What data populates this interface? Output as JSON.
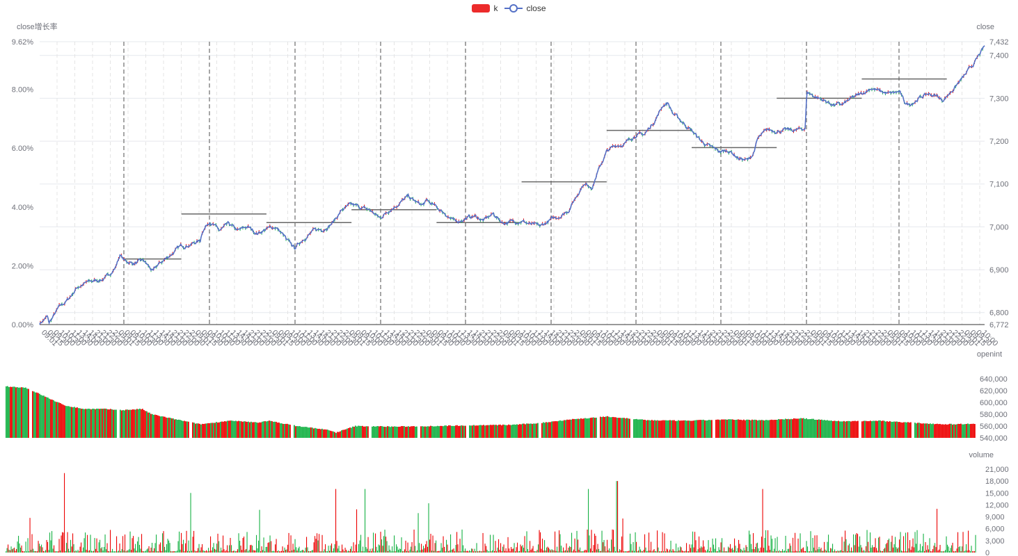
{
  "legend": {
    "items": [
      {
        "name": "k",
        "color": "#ec2b2b"
      },
      {
        "name": "close",
        "color": "#5470c6"
      }
    ]
  },
  "colors": {
    "up": "#ec0000",
    "down": "#14b143",
    "line": "#5470c6",
    "session_divider": "#888888",
    "vwap": "#666666",
    "grid": "#e6e8ee"
  },
  "chart_data": [
    {
      "type": "line",
      "name": "price",
      "series": [
        {
          "name": "close",
          "anchors": [
            [
              0,
              6775
            ],
            [
              0.008,
              6790
            ],
            [
              0.01,
              6775
            ],
            [
              0.02,
              6810
            ],
            [
              0.03,
              6830
            ],
            [
              0.04,
              6860
            ],
            [
              0.05,
              6870
            ],
            [
              0.06,
              6875
            ],
            [
              0.07,
              6880
            ],
            [
              0.08,
              6905
            ],
            [
              0.085,
              6935
            ],
            [
              0.09,
              6920
            ],
            [
              0.1,
              6915
            ],
            [
              0.11,
              6920
            ],
            [
              0.115,
              6908
            ],
            [
              0.12,
              6895
            ],
            [
              0.125,
              6910
            ],
            [
              0.14,
              6938
            ],
            [
              0.15,
              6955
            ],
            [
              0.16,
              6960
            ],
            [
              0.17,
              6968
            ],
            [
              0.172,
              6990
            ],
            [
              0.18,
              7015
            ],
            [
              0.19,
              6990
            ],
            [
              0.2,
              7005
            ],
            [
              0.21,
              6990
            ],
            [
              0.22,
              7000
            ],
            [
              0.23,
              6985
            ],
            [
              0.24,
              6995
            ],
            [
              0.25,
              7000
            ],
            [
              0.26,
              6975
            ],
            [
              0.26,
              6970
            ],
            [
              0.27,
              6950
            ],
            [
              0.28,
              6975
            ],
            [
              0.29,
              6990
            ],
            [
              0.3,
              6995
            ],
            [
              0.31,
              7010
            ],
            [
              0.32,
              7040
            ],
            [
              0.33,
              7050
            ],
            [
              0.34,
              7045
            ],
            [
              0.35,
              7038
            ],
            [
              0.36,
              7020
            ],
            [
              0.37,
              7040
            ],
            [
              0.38,
              7055
            ],
            [
              0.39,
              7070
            ],
            [
              0.4,
              7055
            ],
            [
              0.405,
              7050
            ],
            [
              0.41,
              7060
            ],
            [
              0.42,
              7045
            ],
            [
              0.43,
              7030
            ],
            [
              0.44,
              7010
            ],
            [
              0.45,
              7020
            ],
            [
              0.46,
              7025
            ],
            [
              0.47,
              7015
            ],
            [
              0.48,
              7030
            ],
            [
              0.49,
              7010
            ],
            [
              0.5,
              7012
            ],
            [
              0.51,
              7015
            ],
            [
              0.52,
              7005
            ],
            [
              0.53,
              7000
            ],
            [
              0.54,
              7015
            ],
            [
              0.55,
              7025
            ],
            [
              0.56,
              7040
            ],
            [
              0.57,
              7080
            ],
            [
              0.575,
              7100
            ],
            [
              0.585,
              7095
            ],
            [
              0.59,
              7125
            ],
            [
              0.6,
              7175
            ],
            [
              0.61,
              7190
            ],
            [
              0.62,
              7195
            ],
            [
              0.63,
              7215
            ],
            [
              0.64,
              7215
            ],
            [
              0.65,
              7245
            ],
            [
              0.66,
              7285
            ],
            [
              0.665,
              7290
            ],
            [
              0.67,
              7265
            ],
            [
              0.68,
              7245
            ],
            [
              0.69,
              7225
            ],
            [
              0.7,
              7200
            ],
            [
              0.71,
              7185
            ],
            [
              0.72,
              7175
            ],
            [
              0.73,
              7178
            ],
            [
              0.74,
              7160
            ],
            [
              0.75,
              7155
            ],
            [
              0.755,
              7170
            ],
            [
              0.76,
              7205
            ],
            [
              0.77,
              7225
            ],
            [
              0.78,
              7225
            ],
            [
              0.79,
              7225
            ],
            [
              0.8,
              7225
            ],
            [
              0.81,
              7230
            ],
            [
              0.812,
              7315
            ],
            [
              0.82,
              7305
            ],
            [
              0.83,
              7295
            ],
            [
              0.84,
              7285
            ],
            [
              0.85,
              7285
            ],
            [
              0.86,
              7300
            ],
            [
              0.87,
              7310
            ],
            [
              0.88,
              7325
            ],
            [
              0.89,
              7315
            ],
            [
              0.9,
              7310
            ],
            [
              0.91,
              7315
            ],
            [
              0.915,
              7290
            ],
            [
              0.92,
              7285
            ],
            [
              0.93,
              7300
            ],
            [
              0.94,
              7310
            ],
            [
              0.95,
              7305
            ],
            [
              0.955,
              7295
            ],
            [
              0.96,
              7305
            ],
            [
              0.97,
              7330
            ],
            [
              0.98,
              7355
            ],
            [
              0.99,
              7385
            ],
            [
              1.0,
              7420
            ]
          ]
        }
      ],
      "session_vwap_lines": [
        {
          "from": 0.09,
          "to": 0.15,
          "y": 6925
        },
        {
          "from": 0.15,
          "to": 0.24,
          "y": 7030
        },
        {
          "from": 0.24,
          "to": 0.33,
          "y": 7010
        },
        {
          "from": 0.33,
          "to": 0.42,
          "y": 7040
        },
        {
          "from": 0.42,
          "to": 0.51,
          "y": 7010
        },
        {
          "from": 0.51,
          "to": 0.6,
          "y": 7105
        },
        {
          "from": 0.6,
          "to": 0.69,
          "y": 7225
        },
        {
          "from": 0.69,
          "to": 0.78,
          "y": 7185
        },
        {
          "from": 0.78,
          "to": 0.87,
          "y": 7300
        },
        {
          "from": 0.87,
          "to": 0.96,
          "y": 7345
        }
      ],
      "ylim_right": [
        6772,
        7432
      ],
      "yticks_right": [
        "6,772",
        "6,800",
        "6,900",
        "7,000",
        "7,100",
        "7,200",
        "7,300",
        "7,400",
        "7,432"
      ],
      "yticks_left": [
        "0.00%",
        "2.00%",
        "4.00%",
        "6.00%",
        "8.00%",
        "9.62%"
      ],
      "ylabel_left": "close增长率",
      "ylabel_right": "close",
      "grid": true
    },
    {
      "type": "bar",
      "name": "openint",
      "ylabel": "openint",
      "ylim": [
        540000,
        640000
      ],
      "yticks": [
        "540,000",
        "560,000",
        "580,000",
        "600,000",
        "620,000",
        "640,000"
      ],
      "profile": [
        [
          0,
          627000
        ],
        [
          0.02,
          625000
        ],
        [
          0.04,
          610000
        ],
        [
          0.06,
          595000
        ],
        [
          0.08,
          589000
        ],
        [
          0.1,
          589000
        ],
        [
          0.12,
          587000
        ],
        [
          0.14,
          589000
        ],
        [
          0.15,
          580000
        ],
        [
          0.17,
          573000
        ],
        [
          0.2,
          563000
        ],
        [
          0.23,
          569000
        ],
        [
          0.26,
          566000
        ],
        [
          0.27,
          569000
        ],
        [
          0.3,
          560000
        ],
        [
          0.33,
          554000
        ],
        [
          0.34,
          549000
        ],
        [
          0.36,
          560000
        ],
        [
          0.4,
          559000
        ],
        [
          0.44,
          560000
        ],
        [
          0.47,
          561000
        ],
        [
          0.52,
          562000
        ],
        [
          0.55,
          565000
        ],
        [
          0.58,
          571000
        ],
        [
          0.62,
          576000
        ],
        [
          0.66,
          570000
        ],
        [
          0.7,
          569000
        ],
        [
          0.74,
          571000
        ],
        [
          0.78,
          570000
        ],
        [
          0.82,
          573000
        ],
        [
          0.86,
          568000
        ],
        [
          0.9,
          569000
        ],
        [
          0.94,
          565000
        ],
        [
          0.97,
          563000
        ],
        [
          1.0,
          564000
        ]
      ]
    },
    {
      "type": "bar",
      "name": "volume",
      "ylabel": "volume",
      "ylim": [
        0,
        21000
      ],
      "yticks": [
        "0",
        "3,000",
        "6,000",
        "9,000",
        "12,000",
        "15,000",
        "18,000",
        "21,000"
      ],
      "peaks": [
        [
          0.06,
          20000
        ],
        [
          0.19,
          15000
        ],
        [
          0.34,
          16000
        ],
        [
          0.37,
          16000
        ],
        [
          0.6,
          16000
        ],
        [
          0.63,
          18000
        ],
        [
          0.78,
          16000
        ],
        [
          0.96,
          11000
        ]
      ]
    }
  ]
}
